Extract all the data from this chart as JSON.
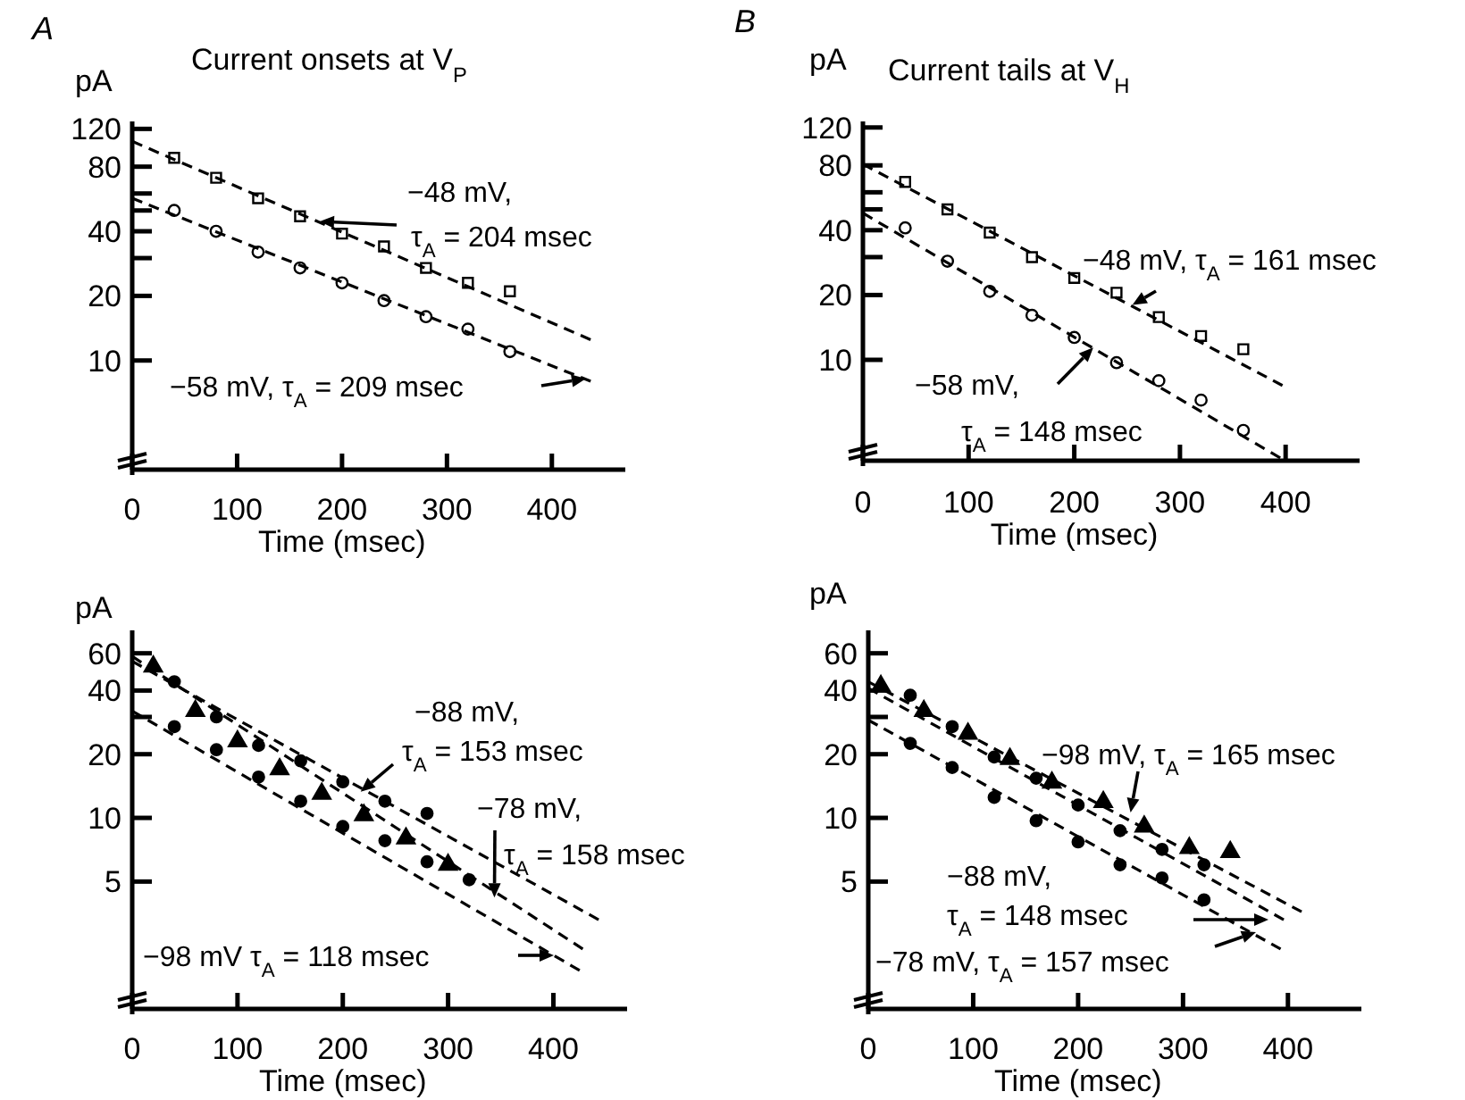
{
  "chart_data": [
    {
      "type": "scatter",
      "title": "Current onsets at V$_{P}$",
      "xlabel": "Time (msec)",
      "ylabel": "pA",
      "log": "y",
      "xlim": [
        0,
        470
      ],
      "ylim": [
        3.1,
        130
      ],
      "xticks": [
        0,
        100,
        200,
        300,
        400
      ],
      "yticks": [
        10,
        20,
        {
          "value": 30,
          "label": null
        },
        40,
        {
          "value": 50,
          "label": null
        },
        {
          "value": 60,
          "label": null
        },
        80,
        120
      ],
      "series": [
        {
          "type": "scatter",
          "marker": "square",
          "color": "#ffffff",
          "x": [
            40,
            80,
            120,
            160,
            200,
            240,
            280,
            320,
            360
          ],
          "values": [
            88,
            71,
            57,
            47,
            39,
            34,
            27,
            23,
            21
          ]
        },
        {
          "type": "scatter",
          "marker": "circle",
          "color": "#ffffff",
          "x": [
            40,
            80,
            120,
            160,
            200,
            240,
            280,
            320,
            360
          ],
          "values": [
            50,
            40,
            32,
            27,
            23,
            19,
            16,
            14,
            11
          ]
        },
        {
          "type": "line",
          "marker": "none",
          "line_style": "dashed",
          "color": "#000000",
          "x": [
            0,
            437
          ],
          "values": [
            105,
            12.5
          ]
        },
        {
          "type": "line",
          "marker": "none",
          "line_style": "dashed",
          "color": "#000000",
          "x": [
            0,
            437
          ],
          "values": [
            57,
            8
          ]
        }
      ],
      "annotations": [
        "A",
        "−48 mV,\nτ$_{A}$ = 204 msec",
        "−58 mV, τ$_{A}$ = 209 msec"
      ]
    },
    {
      "type": "scatter",
      "title": "Current tails at V$_{H}$",
      "xlabel": "Time (msec)",
      "ylabel": "pA",
      "log": "y",
      "xlim": [
        0,
        470
      ],
      "ylim": [
        3.4,
        128
      ],
      "xticks": [
        0,
        100,
        200,
        300,
        400
      ],
      "yticks": [
        10,
        20,
        {
          "value": 30,
          "label": null
        },
        40,
        {
          "value": 50,
          "label": null
        },
        {
          "value": 60,
          "label": null
        },
        80,
        120
      ],
      "series": [
        {
          "type": "scatter",
          "marker": "square",
          "color": "#ffffff",
          "x": [
            40,
            80,
            120,
            160,
            200,
            240,
            280,
            320,
            360
          ],
          "values": [
            67,
            50,
            39,
            30,
            24,
            20.5,
            15.8,
            12.9,
            11.2
          ]
        },
        {
          "type": "scatter",
          "marker": "circle",
          "color": "#ffffff",
          "x": [
            40,
            80,
            120,
            160,
            200,
            240,
            280,
            320,
            360
          ],
          "values": [
            41,
            28.7,
            20.8,
            16.1,
            12.7,
            9.7,
            8,
            6.5,
            4.7
          ]
        },
        {
          "type": "line",
          "marker": "none",
          "line_style": "dashed",
          "color": "#000000",
          "x": [
            0,
            397
          ],
          "values": [
            81,
            7.6
          ]
        },
        {
          "type": "line",
          "marker": "none",
          "line_style": "dashed",
          "color": "#000000",
          "x": [
            0,
            395
          ],
          "values": [
            48,
            3.5
          ]
        }
      ],
      "annotations": [
        "B",
        {
          "text": "−48 mV, τ$_{A}$ = 161 msec",
          "x": 255,
          "y": 18
        },
        {
          "text": "−58 mV,\nτ$_{A}$ = 148 msec",
          "x": 218,
          "y": 11.4
        }
      ]
    },
    {
      "type": "scatter",
      "xlabel": "Time (msec)",
      "ylabel": "pA",
      "log": "y",
      "xlim": [
        0,
        470
      ],
      "ylim": [
        1.25,
        77
      ],
      "xticks": [
        0,
        100,
        200,
        300,
        400
      ],
      "yticks": [
        5,
        10,
        20,
        {
          "value": 30,
          "label": null
        },
        40,
        60
      ],
      "series": [
        {
          "type": "scatter",
          "marker": "triangle",
          "color": "#000000",
          "x": [
            20,
            60,
            100,
            140,
            180,
            220,
            260,
            300
          ],
          "values": [
            52,
            32,
            23,
            17,
            13,
            10.3,
            8,
            6
          ]
        },
        {
          "type": "scatter",
          "marker": "circle",
          "color": "#000000",
          "x": [
            40,
            80,
            120,
            160,
            200,
            240,
            280
          ],
          "values": [
            44,
            30,
            22,
            18.6,
            14.8,
            12,
            10.5
          ]
        },
        {
          "type": "scatter",
          "marker": "circle",
          "color": "#000000",
          "x": [
            40,
            80,
            120,
            160,
            200,
            240,
            280,
            320
          ],
          "values": [
            27,
            21,
            15.6,
            12,
            9.1,
            7.8,
            6.2,
            5.1
          ]
        },
        {
          "type": "line",
          "marker": "none",
          "line_style": "dashed",
          "color": "#000000",
          "x": [
            0,
            443
          ],
          "values": [
            55,
            3.3
          ]
        },
        {
          "type": "line",
          "marker": "none",
          "line_style": "dashed",
          "color": "#000000",
          "x": [
            0,
            428
          ],
          "values": [
            58,
            2.4
          ]
        },
        {
          "type": "line",
          "marker": "none",
          "line_style": "dashed",
          "color": "#000000",
          "x": [
            0,
            425
          ],
          "values": [
            32,
            1.9
          ]
        }
      ],
      "annotations": [
        {
          "text": "−88 mV,\nτ$_{A}$ = 153 msec",
          "x": 217,
          "y": 13.3
        },
        {
          "text": "−78 mV,\nτ$_{A}$ = 158 msec",
          "x": 344,
          "y": 4.2
        },
        "−98 mV  τ$_{A}$ = 118 msec"
      ]
    },
    {
      "type": "scatter",
      "xlabel": "Time (msec)",
      "ylabel": "pA",
      "log": "y",
      "xlim": [
        0,
        470
      ],
      "ylim": [
        1.25,
        77
      ],
      "xticks": [
        0,
        100,
        200,
        300,
        400
      ],
      "yticks": [
        5,
        10,
        20,
        {
          "value": 30,
          "label": null
        },
        40,
        60
      ],
      "series": [
        {
          "type": "scatter",
          "marker": "triangle",
          "color": "#000000",
          "x": [
            12,
            53,
            95,
            135,
            175,
            224,
            263,
            306,
            345
          ],
          "values": [
            42,
            32,
            25,
            19,
            14.7,
            11.9,
            9.1,
            7.2,
            6.9
          ]
        },
        {
          "type": "scatter",
          "marker": "circle",
          "color": "#000000",
          "x": [
            40,
            80,
            120,
            160,
            200,
            240,
            280,
            320
          ],
          "values": [
            38,
            27,
            19.4,
            15.4,
            11.5,
            8.7,
            7.1,
            6
          ]
        },
        {
          "type": "scatter",
          "marker": "circle",
          "color": "#000000",
          "x": [
            40,
            80,
            120,
            160,
            200,
            240,
            280,
            320
          ],
          "values": [
            22.5,
            17.3,
            12.5,
            9.7,
            7.7,
            6,
            5.2,
            4.1
          ]
        },
        {
          "type": "line",
          "marker": "none",
          "line_style": "dashed",
          "color": "#000000",
          "x": [
            0,
            413
          ],
          "values": [
            44,
            3.6
          ]
        },
        {
          "type": "line",
          "marker": "none",
          "line_style": "dashed",
          "color": "#000000",
          "x": [
            0,
            396
          ],
          "values": [
            41,
            3.3
          ]
        },
        {
          "type": "line",
          "marker": "none",
          "line_style": "dashed",
          "color": "#000000",
          "x": [
            0,
            393
          ],
          "values": [
            29,
            2.4
          ]
        }
      ],
      "annotations": [
        {
          "text": "−98 mV, τ$_{A}$ = 165 msec",
          "x": 250,
          "y": 10.6
        },
        "−88 mV,\nτ$_{A}$ = 148 msec",
        "−78 mV, τ$_{A}$ = 157 msec"
      ]
    }
  ]
}
